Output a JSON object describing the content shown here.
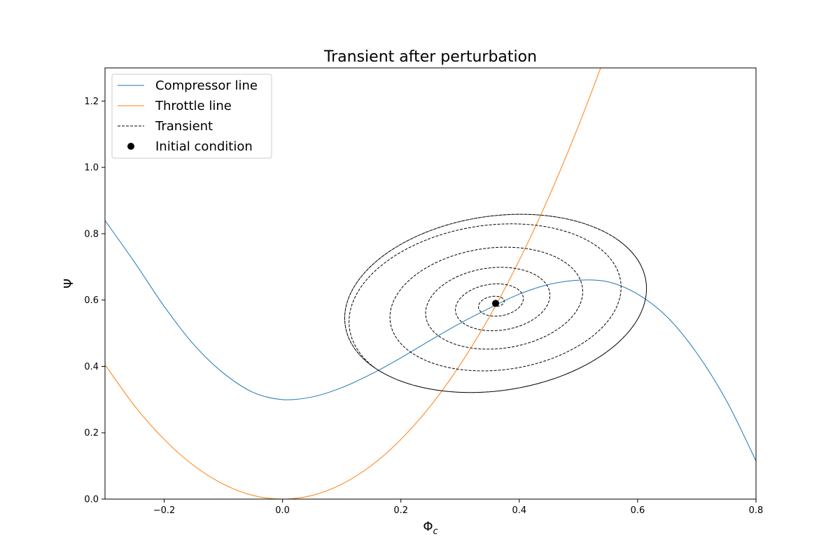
{
  "chart_data": {
    "type": "line",
    "title": "Transient after perturbation",
    "xlabel": "Φ",
    "xlabel_sub": "c",
    "ylabel": "Ψ",
    "xlim": [
      -0.3,
      0.8
    ],
    "ylim": [
      0.0,
      1.3
    ],
    "xticks": [
      -0.2,
      0.0,
      0.2,
      0.4,
      0.6,
      0.8
    ],
    "xtick_labels": [
      "−0.2",
      "0.0",
      "0.2",
      "0.4",
      "0.6",
      "0.8"
    ],
    "yticks": [
      0.0,
      0.2,
      0.4,
      0.6,
      0.8,
      1.0,
      1.2
    ],
    "ytick_labels": [
      "0.0",
      "0.2",
      "0.4",
      "0.6",
      "0.8",
      "1.0",
      "1.2"
    ],
    "grid": false,
    "legend_position": "top-left",
    "colors": {
      "compressor": "#1f77b4",
      "throttle": "#ff7f0e",
      "transient": "#000000",
      "initial": "#000000"
    },
    "series": [
      {
        "name": "Compressor line",
        "style": "solid",
        "x": [
          -0.3,
          -0.25,
          -0.2,
          -0.15,
          -0.1,
          -0.05,
          0.0,
          0.05,
          0.1,
          0.15,
          0.2,
          0.25,
          0.3,
          0.35,
          0.4,
          0.45,
          0.5,
          0.55,
          0.6,
          0.65,
          0.7,
          0.75,
          0.8
        ],
        "y": [
          0.84,
          0.714,
          0.581,
          0.466,
          0.38,
          0.322,
          0.3,
          0.308,
          0.336,
          0.377,
          0.426,
          0.479,
          0.53,
          0.576,
          0.618,
          0.647,
          0.66,
          0.655,
          0.618,
          0.549,
          0.44,
          0.297,
          0.115
        ]
      },
      {
        "name": "Throttle line",
        "style": "solid",
        "x": [
          -0.3,
          -0.25,
          -0.2,
          -0.15,
          -0.1,
          -0.05,
          0.0,
          0.05,
          0.1,
          0.15,
          0.2,
          0.25,
          0.3,
          0.35,
          0.4,
          0.45,
          0.5,
          0.54
        ],
        "y": [
          0.405,
          0.281,
          0.18,
          0.101,
          0.045,
          0.011,
          0.0,
          0.011,
          0.045,
          0.101,
          0.18,
          0.281,
          0.405,
          0.551,
          0.72,
          0.911,
          1.125,
          1.312
        ]
      },
      {
        "name": "Transient",
        "style": "dashed",
        "spiral": {
          "center": [
            0.36,
            0.59
          ],
          "radius_x": [
            0.0,
            0.265
          ],
          "radius_y": [
            0.0,
            0.32
          ],
          "rotation_deg": 40,
          "turns": 5.5,
          "limit_cycle_turns": 2.5
        }
      },
      {
        "name": "Initial condition",
        "style": "marker",
        "x": [
          0.36
        ],
        "y": [
          0.59
        ]
      }
    ]
  }
}
